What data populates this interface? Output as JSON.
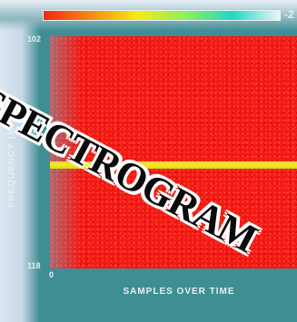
{
  "chart_data": {
    "type": "heatmap",
    "title": "SPECTROGRAM",
    "ylabel": "FREQUENCY (MHz)",
    "xlabel": "SAMPLES OVER TIME",
    "y_ticks": [
      "102",
      "118"
    ],
    "x_ticks": [
      "0",
      ""
    ],
    "colorbar_max_label": "-2",
    "colormap": [
      "#ef2a12",
      "#f58a12",
      "#f5ec14",
      "#8df05a",
      "#23d6c6",
      "#e9f6f8"
    ],
    "background_color": "#f41914",
    "feature_line": {
      "color": "#f2ea1c"
    },
    "grid": false
  }
}
